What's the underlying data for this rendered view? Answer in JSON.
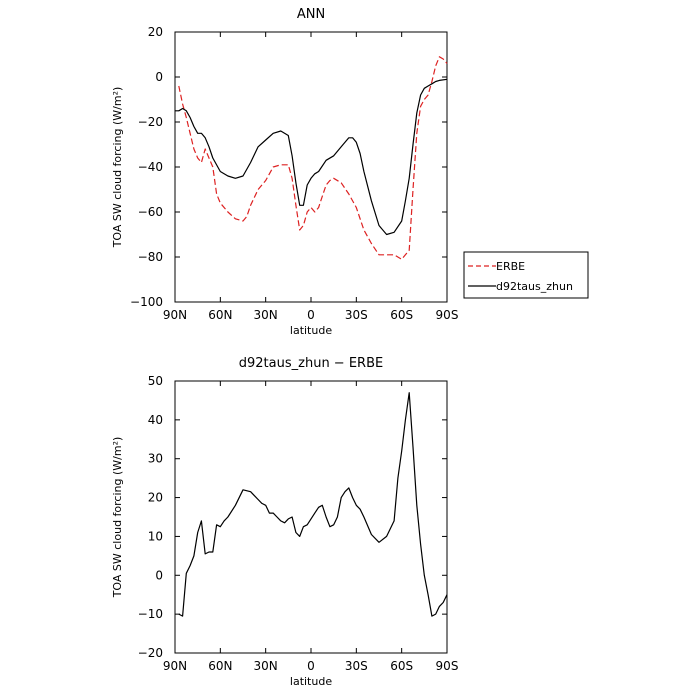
{
  "chart_data": [
    {
      "type": "line",
      "title": "ANN",
      "xlabel": "latitude",
      "ylabel": "TOA SW cloud forcing (W/m²)",
      "xlim": [
        -90,
        90
      ],
      "ylim": [
        -100,
        20
      ],
      "xticks": [
        -90,
        -60,
        -30,
        0,
        30,
        60,
        90
      ],
      "xtick_labels": [
        "90N",
        "60N",
        "30N",
        "0",
        "30S",
        "60S",
        "90S"
      ],
      "yticks": [
        -100,
        -80,
        -60,
        -40,
        -20,
        0,
        20
      ],
      "ytick_labels": [
        "−100",
        "−80",
        "−60",
        "−40",
        "−20",
        "0",
        "20"
      ],
      "grid": false,
      "legend": "outside-right",
      "series": [
        {
          "name": "ERBE",
          "color": "#dd2222",
          "dash": "dashed",
          "x": [
            -87.5,
            -85,
            -82.5,
            -80,
            -77.5,
            -75,
            -72.5,
            -70,
            -67.5,
            -65,
            -62.5,
            -60,
            -55,
            -50,
            -45,
            -42.5,
            -40,
            -35,
            -30,
            -25,
            -20,
            -15,
            -12.5,
            -10,
            -7.5,
            -5,
            -2.5,
            0,
            2.5,
            5,
            7.5,
            10,
            12.5,
            15,
            20,
            25,
            30,
            35,
            40,
            45,
            50,
            55,
            60,
            62.5,
            65,
            67.5,
            70,
            72.5,
            75,
            77.5,
            80,
            82.5,
            85,
            87.5,
            90
          ],
          "y": [
            -4,
            -12,
            -18,
            -25,
            -32,
            -36,
            -38,
            -32,
            -36,
            -40,
            -52,
            -56,
            -60,
            -63,
            -64,
            -62,
            -57,
            -50,
            -46,
            -40,
            -39,
            -39,
            -45,
            -57,
            -68,
            -66,
            -60,
            -58,
            -60,
            -58,
            -53,
            -48,
            -46,
            -45,
            -47,
            -52,
            -58,
            -68,
            -74,
            -79,
            -79,
            -79,
            -81,
            -79,
            -77,
            -50,
            -25,
            -13,
            -10,
            -8,
            -2,
            5,
            9,
            8,
            6
          ]
        },
        {
          "name": "d92taus_zhun",
          "color": "#000000",
          "dash": "solid",
          "x": [
            -90,
            -87.5,
            -85,
            -82.5,
            -80,
            -77.5,
            -75,
            -72.5,
            -70,
            -67.5,
            -65,
            -60,
            -55,
            -50,
            -45,
            -40,
            -35,
            -30,
            -25,
            -20,
            -15,
            -12.5,
            -10,
            -7.5,
            -5,
            -2.5,
            0,
            2.5,
            5,
            10,
            15,
            20,
            25,
            27.5,
            30,
            32.5,
            35,
            40,
            45,
            50,
            55,
            60,
            62.5,
            65,
            67.5,
            70,
            72.5,
            75,
            77.5,
            80,
            82.5,
            85,
            90
          ],
          "y": [
            -15,
            -15,
            -14,
            -15,
            -18,
            -22,
            -25,
            -25,
            -27,
            -31,
            -36,
            -42,
            -44,
            -45,
            -44,
            -38,
            -31,
            -28,
            -25,
            -24,
            -26,
            -35,
            -47,
            -57,
            -57,
            -48,
            -45,
            -43,
            -42,
            -37,
            -35,
            -31,
            -27,
            -27,
            -29,
            -34,
            -42,
            -55,
            -66,
            -70,
            -69,
            -64,
            -55,
            -45,
            -30,
            -16,
            -8,
            -5,
            -4,
            -3,
            -2,
            -1.5,
            -1
          ]
        }
      ]
    },
    {
      "type": "line",
      "title": "d92taus_zhun − ERBE",
      "xlabel": "latitude",
      "ylabel": "TOA SW cloud forcing (W/m²)",
      "xlim": [
        -90,
        90
      ],
      "ylim": [
        -20,
        50
      ],
      "xticks": [
        -90,
        -60,
        -30,
        0,
        30,
        60,
        90
      ],
      "xtick_labels": [
        "90N",
        "60N",
        "30N",
        "0",
        "30S",
        "60S",
        "90S"
      ],
      "yticks": [
        -20,
        -10,
        0,
        10,
        20,
        30,
        40,
        50
      ],
      "ytick_labels": [
        "−20",
        "−10",
        "0",
        "10",
        "20",
        "30",
        "40",
        "50"
      ],
      "grid": false,
      "series": [
        {
          "name": "d92taus_zhun − ERBE",
          "color": "#000000",
          "dash": "solid",
          "x": [
            -87.5,
            -85,
            -82.5,
            -80,
            -77.5,
            -75,
            -72.5,
            -70,
            -67.5,
            -65,
            -62.5,
            -60,
            -57.5,
            -55,
            -50,
            -45,
            -40,
            -37.5,
            -35,
            -32.5,
            -30,
            -27.5,
            -25,
            -22.5,
            -20,
            -17.5,
            -15,
            -12.5,
            -10,
            -7.5,
            -5,
            -2.5,
            0,
            2.5,
            5,
            7.5,
            10,
            12.5,
            15,
            17.5,
            20,
            22.5,
            25,
            27.5,
            30,
            32.5,
            35,
            40,
            45,
            50,
            55,
            57.5,
            60,
            62.5,
            65,
            67.5,
            70,
            72.5,
            75,
            77.5,
            80,
            82.5,
            85,
            87.5,
            90
          ],
          "y": [
            -10,
            -10.5,
            0.5,
            2.5,
            5,
            11,
            14,
            5.5,
            6,
            6,
            13,
            12.5,
            14,
            15,
            18,
            22,
            21.5,
            20.5,
            19.5,
            18.5,
            18,
            16,
            16,
            15,
            14,
            13.5,
            14.5,
            15,
            11,
            10,
            12.5,
            13,
            14.5,
            16,
            17.5,
            18,
            15,
            12.5,
            13,
            15,
            20,
            21.5,
            22.5,
            20,
            18,
            17,
            15,
            10.5,
            8.5,
            10,
            14,
            25,
            32,
            40,
            47,
            33,
            18,
            8,
            0,
            -5,
            -10.5,
            -10,
            -8,
            -7,
            -5
          ]
        }
      ]
    }
  ]
}
